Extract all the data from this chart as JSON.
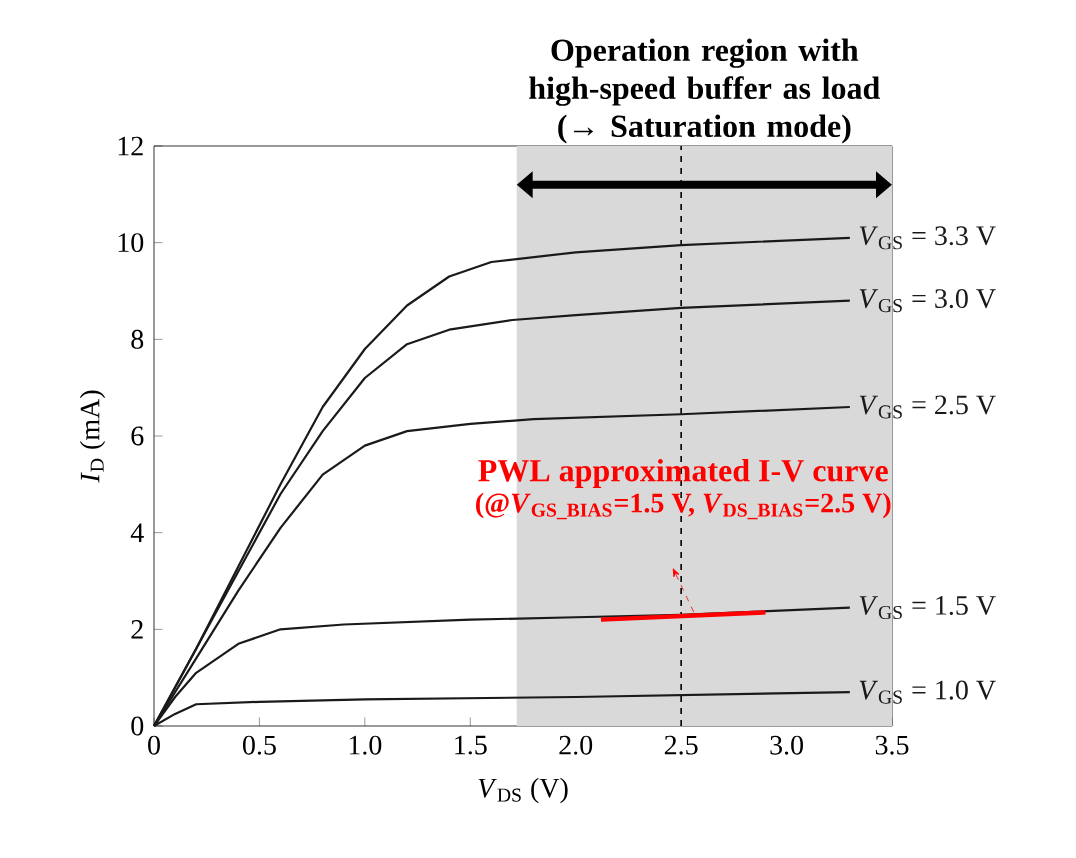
{
  "chart_data": {
    "type": "line",
    "xlabel": "*V*$_{DS}$ (V)",
    "ylabel": "*I*$_{D}$ (mA)",
    "xlim": [
      0,
      3.5
    ],
    "ylim": [
      0,
      12
    ],
    "xticks": [
      0,
      0.5,
      {
        "value": 1,
        "label": "1.0"
      },
      1.5,
      {
        "value": 2,
        "label": "2.0"
      },
      2.5,
      {
        "value": 3,
        "label": "3.0"
      },
      3.5
    ],
    "yticks": [
      0,
      2,
      4,
      6,
      8,
      10,
      12
    ],
    "series": [
      {
        "name": "*V*$_{GS}$ = 3.3 V",
        "color": "#1a1a1a",
        "x": [
          0,
          0.2,
          0.4,
          0.6,
          0.8,
          1.0,
          1.2,
          1.4,
          1.6,
          2.0,
          2.5,
          3.3
        ],
        "values": [
          0,
          1.6,
          3.3,
          5.0,
          6.6,
          7.8,
          8.7,
          9.3,
          9.6,
          9.8,
          9.95,
          10.1
        ]
      },
      {
        "name": "*V*$_{GS}$ = 3.0 V",
        "color": "#1a1a1a",
        "x": [
          0,
          0.2,
          0.4,
          0.6,
          0.8,
          1.0,
          1.2,
          1.4,
          1.7,
          2.0,
          2.5,
          3.3
        ],
        "values": [
          0,
          1.6,
          3.2,
          4.8,
          6.1,
          7.2,
          7.9,
          8.2,
          8.4,
          8.5,
          8.65,
          8.8
        ]
      },
      {
        "name": "*V*$_{GS}$ = 2.5 V",
        "color": "#1a1a1a",
        "x": [
          0,
          0.2,
          0.4,
          0.6,
          0.8,
          1.0,
          1.2,
          1.5,
          1.8,
          2.5,
          3.3
        ],
        "values": [
          0,
          1.4,
          2.8,
          4.1,
          5.2,
          5.8,
          6.1,
          6.25,
          6.35,
          6.45,
          6.6
        ]
      },
      {
        "name": "*V*$_{GS}$ = 1.5 V",
        "color": "#1a1a1a",
        "x": [
          0,
          0.1,
          0.2,
          0.4,
          0.6,
          0.9,
          1.5,
          2.0,
          2.5,
          3.3
        ],
        "values": [
          0,
          0.6,
          1.1,
          1.7,
          2.0,
          2.1,
          2.2,
          2.25,
          2.3,
          2.45
        ]
      },
      {
        "name": "*V*$_{GS}$ = 1.0 V",
        "color": "#1a1a1a",
        "x": [
          0,
          0.1,
          0.2,
          0.5,
          1.0,
          2.0,
          3.3
        ],
        "values": [
          0,
          0.25,
          0.45,
          0.5,
          0.55,
          0.6,
          0.7
        ]
      },
      {
        "name": "PWL approximated I-V curve",
        "color": "#ff0000",
        "x": [
          2.12,
          2.9
        ],
        "values": [
          2.2,
          2.35
        ]
      }
    ],
    "bands": [
      {
        "axis": "x",
        "from": 1.72,
        "to": 3.5,
        "label": "Operation region with high-speed buffer as load (→ Saturation mode)",
        "color": "#d9d9d9"
      }
    ],
    "ref_lines": [
      {
        "axis": "x",
        "value": 2.5,
        "line_style": "dashed"
      }
    ],
    "annotations": [
      "(@*V*$_{GS_BIAS}$=1.5 V, *V*$_{DS_BIAS}$=2.5 V)"
    ]
  }
}
